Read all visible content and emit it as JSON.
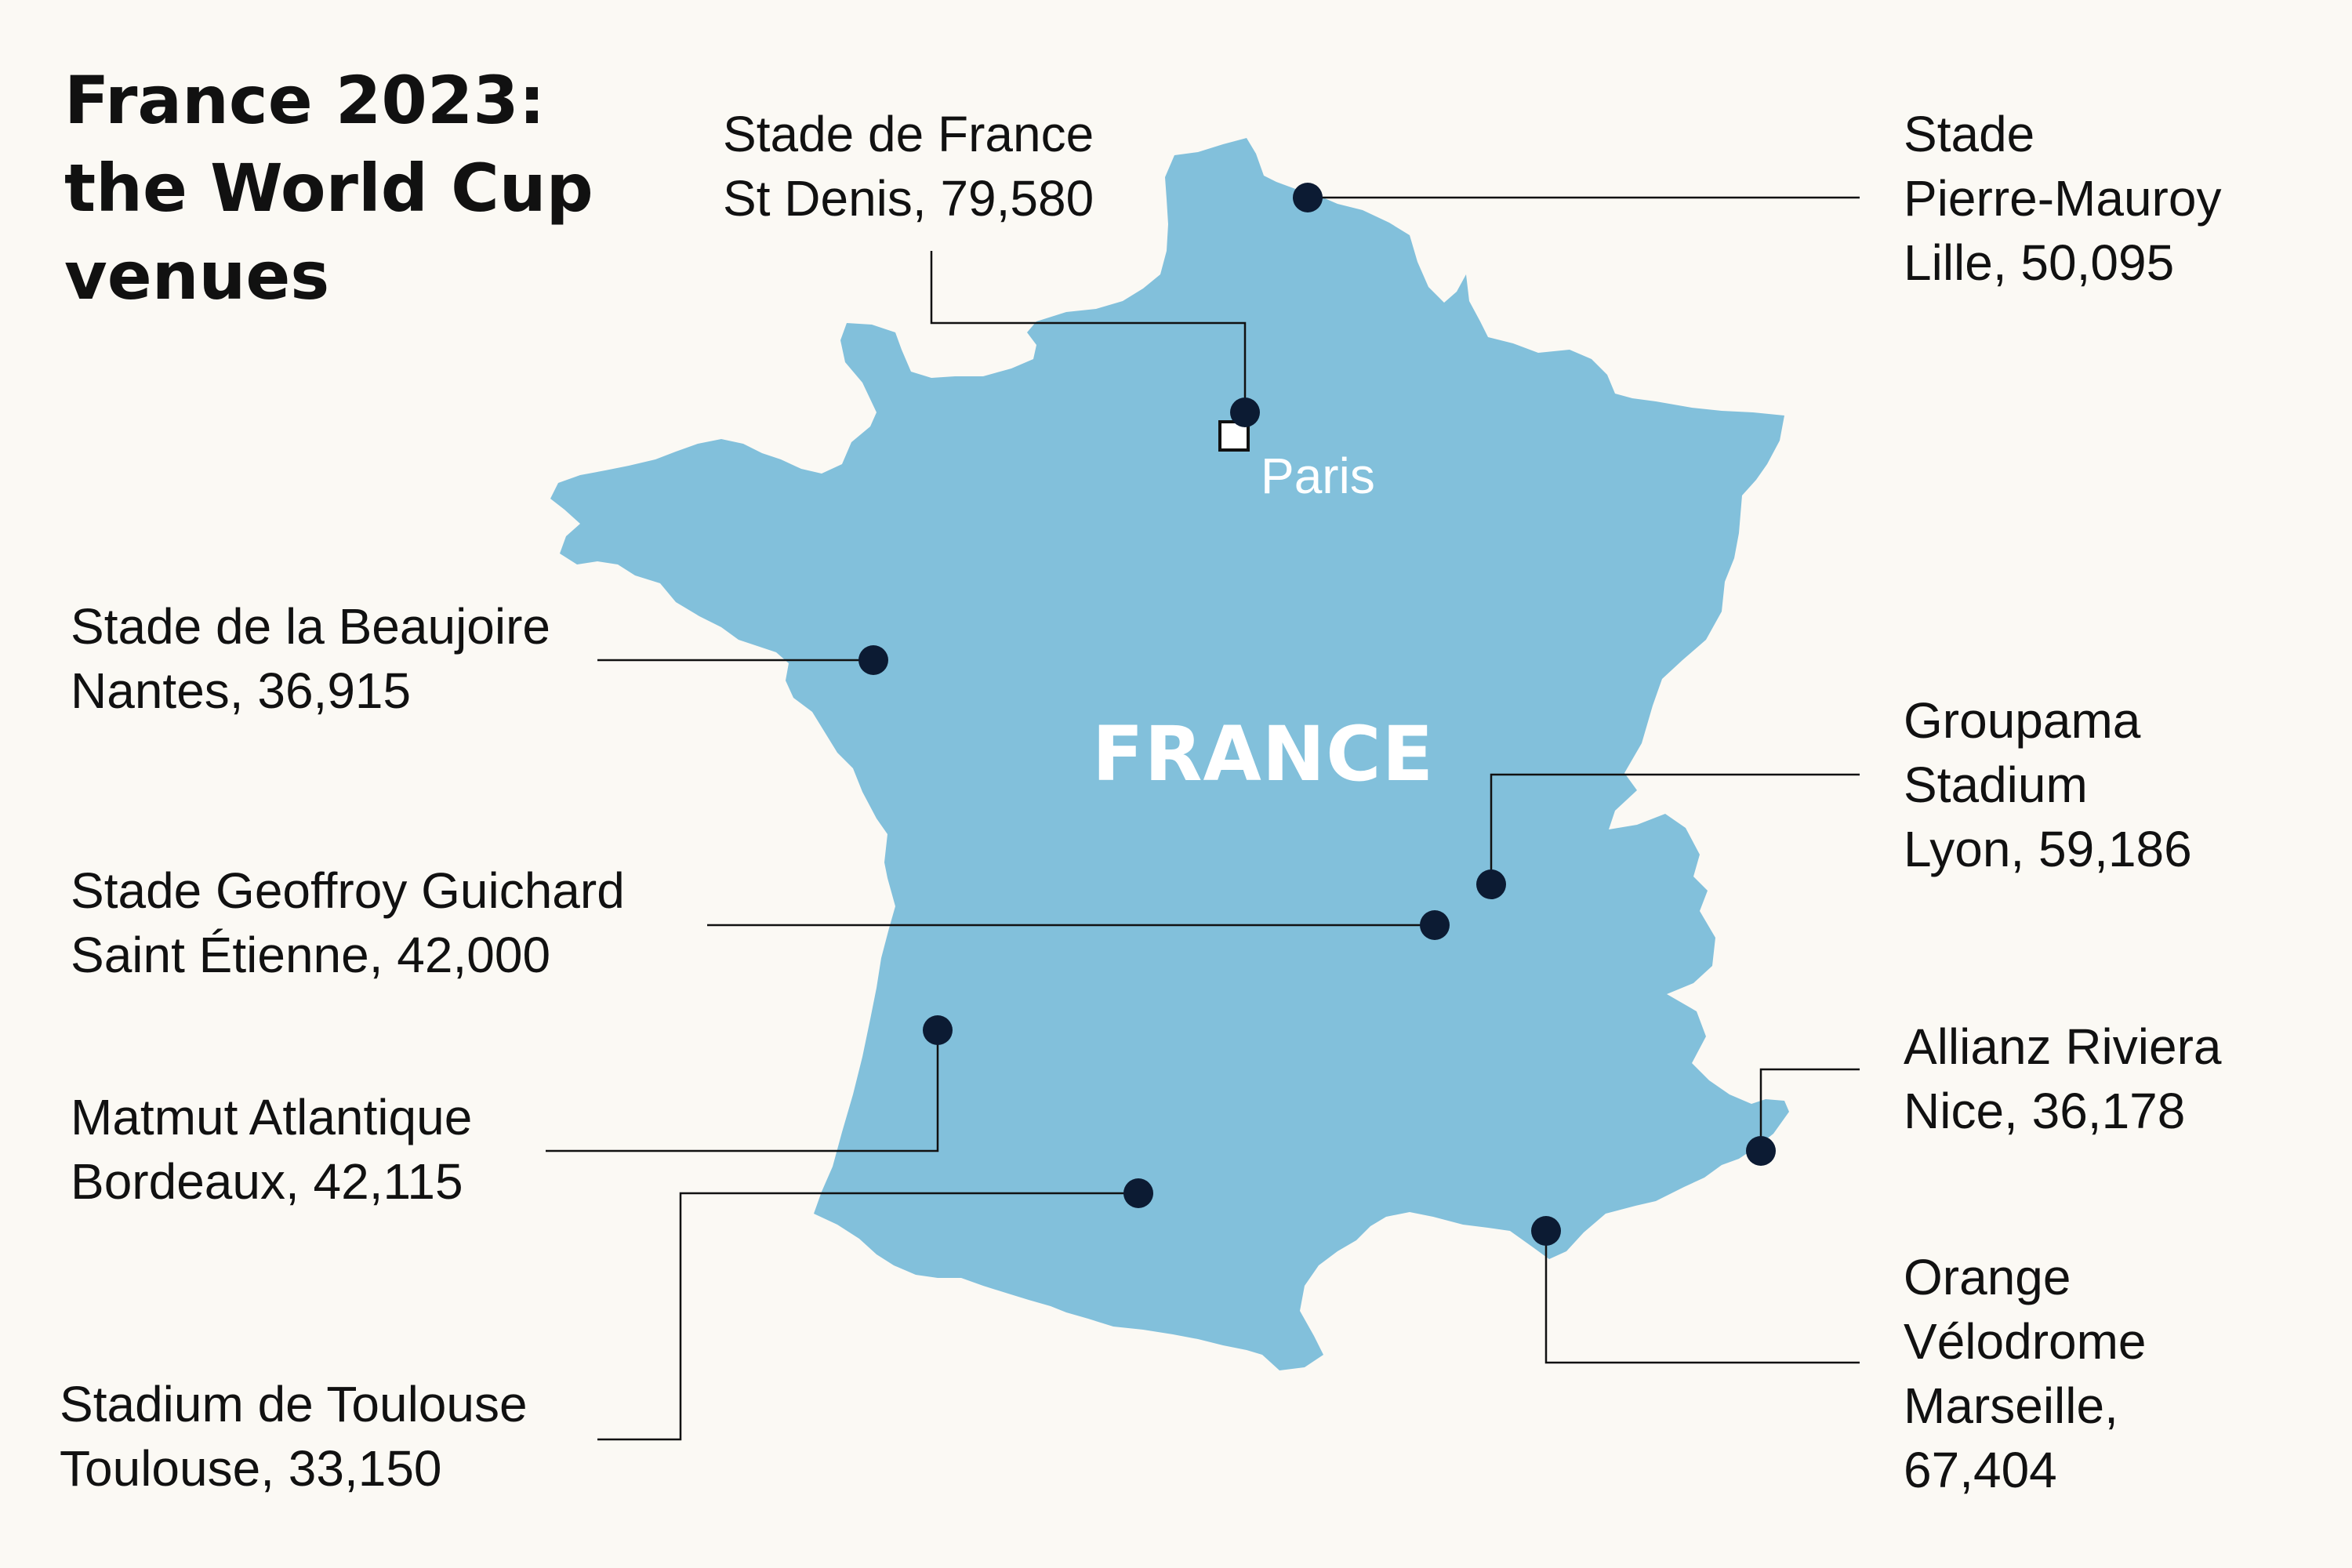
{
  "title": {
    "line1": "France 2023:",
    "line2": "the World Cup",
    "line3": "venues"
  },
  "country_label": "FRANCE",
  "capital_label": "Paris",
  "colors": {
    "background": "#fbf9f4",
    "land": "#82c0db",
    "marker": "#0c1b33",
    "leader": "#111111",
    "text": "#111111"
  },
  "venues": [
    {
      "id": "stade-de-france",
      "name_lines": [
        "Stade de France"
      ],
      "location": "St Denis, 79,580"
    },
    {
      "id": "pierre-mauroy",
      "name_lines": [
        "Stade",
        "Pierre-Mauroy"
      ],
      "location": "Lille, 50,095"
    },
    {
      "id": "beaujoire",
      "name_lines": [
        "Stade de la Beaujoire"
      ],
      "location": "Nantes, 36,915"
    },
    {
      "id": "groupama",
      "name_lines": [
        "Groupama",
        "Stadium"
      ],
      "location": "Lyon, 59,186"
    },
    {
      "id": "geoffroy-guichard",
      "name_lines": [
        "Stade Geoffroy Guichard"
      ],
      "location": "Saint Étienne, 42,000"
    },
    {
      "id": "matmut",
      "name_lines": [
        "Matmut Atlantique"
      ],
      "location": "Bordeaux, 42,115"
    },
    {
      "id": "allianz",
      "name_lines": [
        "Allianz Riviera"
      ],
      "location": "Nice, 36,178"
    },
    {
      "id": "toulouse",
      "name_lines": [
        "Stadium de Toulouse"
      ],
      "location": "Toulouse, 33,150"
    },
    {
      "id": "velodrome",
      "name_lines": [
        "Orange",
        "Vélodrome"
      ],
      "location_lines": [
        "Marseille,",
        "67,404"
      ]
    }
  ]
}
